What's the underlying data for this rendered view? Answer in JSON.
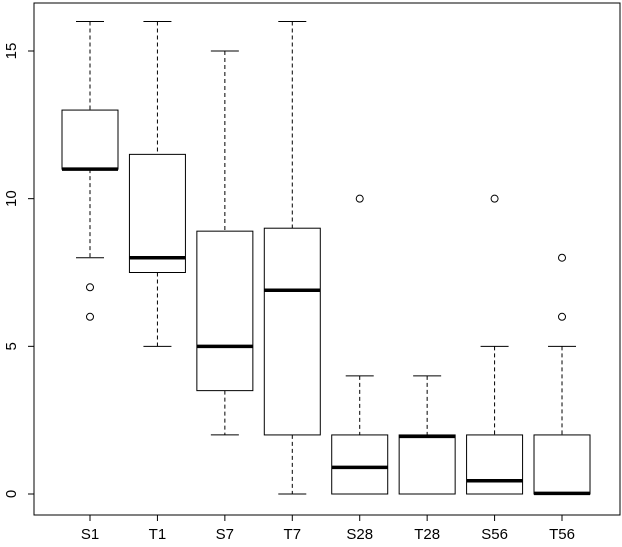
{
  "chart_data": {
    "type": "boxplot",
    "title": "",
    "xlabel": "",
    "ylabel": "",
    "ylim": [
      -0.7,
      16.7
    ],
    "y_ticks": [
      0,
      5,
      10,
      15
    ],
    "grid": false,
    "legend": "none",
    "categories": [
      "S1",
      "T1",
      "S7",
      "T7",
      "S28",
      "T28",
      "S56",
      "T56"
    ],
    "boxes": [
      {
        "label": "S1",
        "lower_whisker": 8,
        "q1": 11,
        "median": 11,
        "q3": 13,
        "upper_whisker": 16,
        "outliers": [
          7,
          6
        ]
      },
      {
        "label": "T1",
        "lower_whisker": 5,
        "q1": 7.5,
        "median": 8,
        "q3": 11.5,
        "upper_whisker": 16,
        "outliers": []
      },
      {
        "label": "S7",
        "lower_whisker": 2,
        "q1": 3.5,
        "median": 5,
        "q3": 8.9,
        "upper_whisker": 15,
        "outliers": []
      },
      {
        "label": "T7",
        "lower_whisker": 0,
        "q1": 2,
        "median": 6.9,
        "q3": 9,
        "upper_whisker": 16,
        "outliers": []
      },
      {
        "label": "S28",
        "lower_whisker": 0,
        "q1": 0,
        "median": 0.9,
        "q3": 2,
        "upper_whisker": 4,
        "outliers": [
          10
        ]
      },
      {
        "label": "T28",
        "lower_whisker": 0,
        "q1": 0,
        "median": 1.95,
        "q3": 2,
        "upper_whisker": 4,
        "outliers": []
      },
      {
        "label": "S56",
        "lower_whisker": 0,
        "q1": 0,
        "median": 0.45,
        "q3": 2,
        "upper_whisker": 5,
        "outliers": [
          10
        ]
      },
      {
        "label": "T56",
        "lower_whisker": 0,
        "q1": 0,
        "median": 0.02,
        "q3": 2,
        "upper_whisker": 5,
        "outliers": [
          8,
          6
        ]
      }
    ]
  }
}
